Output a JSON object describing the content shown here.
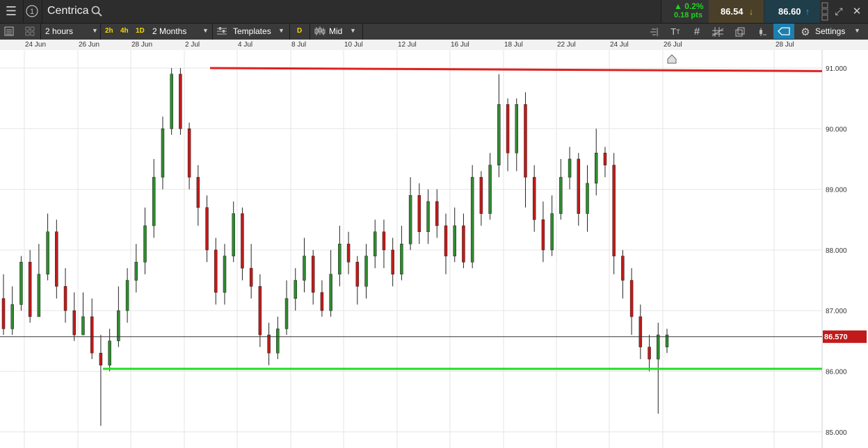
{
  "app": {
    "instrument": "Centrica",
    "change_pct": "▲ 0.2%",
    "change_pts": "0.18 pts",
    "sell_price": "86.54",
    "buy_price": "86.60"
  },
  "toolbar": {
    "interval": "2 hours",
    "quick_2h": "2h",
    "quick_4h": "4h",
    "quick_1d": "1D",
    "range": "2 Months",
    "templates": "Templates",
    "d_button": "D",
    "price_type": "Mid",
    "settings": "Settings"
  },
  "colors": {
    "up": "#2e8b2e",
    "down": "#c11a1a",
    "resistance": "#e02020",
    "support": "#22dd22",
    "current_price": "#c11a1a"
  },
  "chart_data": {
    "type": "candlestick",
    "date_ticks": [
      "24 Jun",
      "26 Jun",
      "28 Jun",
      "2 Jul",
      "4 Jul",
      "8 Jul",
      "10 Jul",
      "12 Jul",
      "16 Jul",
      "18 Jul",
      "22 Jul",
      "24 Jul",
      "26 Jul",
      "28 Jul"
    ],
    "y_ticks": [
      "91.000",
      "90.000",
      "89.000",
      "88.000",
      "87.000",
      "86.000",
      "85.000"
    ],
    "ylim": [
      84.85,
      91.35
    ],
    "current_price": 86.57,
    "current_price_label": "86.570",
    "resistance_line": {
      "start": 91.0,
      "end": 90.95
    },
    "support_line": 86.04,
    "candles": [
      [
        87.2,
        86.7,
        87.6,
        86.6
      ],
      [
        86.7,
        87.1,
        87.4,
        86.6
      ],
      [
        87.1,
        87.8,
        87.9,
        87.0
      ],
      [
        87.8,
        86.9,
        88.0,
        86.8
      ],
      [
        86.9,
        87.6,
        88.1,
        86.9
      ],
      [
        87.6,
        88.3,
        88.6,
        87.5
      ],
      [
        88.3,
        87.4,
        88.5,
        87.2
      ],
      [
        87.4,
        87.0,
        87.7,
        86.8
      ],
      [
        87.0,
        86.6,
        87.3,
        86.5
      ],
      [
        86.6,
        86.9,
        87.3,
        86.6
      ],
      [
        86.9,
        86.3,
        87.2,
        86.2
      ],
      [
        86.3,
        86.1,
        86.6,
        85.1
      ],
      [
        86.1,
        86.5,
        86.7,
        86.0
      ],
      [
        86.5,
        87.0,
        87.4,
        86.4
      ],
      [
        87.0,
        87.5,
        87.7,
        86.8
      ],
      [
        87.5,
        87.8,
        88.1,
        87.3
      ],
      [
        87.8,
        88.4,
        88.7,
        87.6
      ],
      [
        88.4,
        89.2,
        89.5,
        88.2
      ],
      [
        89.2,
        90.0,
        90.2,
        89.0
      ],
      [
        90.0,
        90.9,
        91.0,
        89.9
      ],
      [
        90.9,
        90.0,
        91.0,
        89.9
      ],
      [
        90.0,
        89.2,
        90.1,
        89.0
      ],
      [
        89.2,
        88.7,
        89.4,
        88.4
      ],
      [
        88.7,
        88.0,
        88.9,
        87.8
      ],
      [
        88.0,
        87.3,
        88.2,
        87.1
      ],
      [
        87.3,
        87.9,
        88.1,
        87.1
      ],
      [
        87.9,
        88.6,
        88.8,
        87.8
      ],
      [
        88.6,
        87.7,
        88.7,
        87.5
      ],
      [
        87.7,
        87.4,
        88.1,
        87.2
      ],
      [
        87.4,
        86.6,
        87.6,
        86.4
      ],
      [
        86.6,
        86.3,
        86.8,
        86.1
      ],
      [
        86.3,
        86.7,
        86.9,
        86.2
      ],
      [
        86.7,
        87.2,
        87.5,
        86.6
      ],
      [
        87.2,
        87.5,
        87.7,
        87.0
      ],
      [
        87.5,
        87.9,
        88.2,
        87.3
      ],
      [
        87.9,
        87.3,
        88.0,
        87.1
      ],
      [
        87.3,
        87.0,
        87.5,
        86.9
      ],
      [
        87.0,
        87.6,
        88.0,
        86.9
      ],
      [
        87.6,
        88.1,
        88.4,
        87.4
      ],
      [
        88.1,
        87.8,
        88.3,
        87.6
      ],
      [
        87.8,
        87.4,
        87.9,
        87.1
      ],
      [
        87.4,
        87.9,
        88.1,
        87.2
      ],
      [
        87.9,
        88.3,
        88.5,
        87.7
      ],
      [
        88.3,
        88.0,
        88.5,
        87.7
      ],
      [
        88.0,
        87.6,
        88.2,
        87.4
      ],
      [
        87.6,
        88.1,
        88.4,
        87.5
      ],
      [
        88.1,
        88.9,
        89.2,
        88.0
      ],
      [
        88.9,
        88.3,
        89.1,
        88.1
      ],
      [
        88.3,
        88.8,
        89.0,
        88.1
      ],
      [
        88.8,
        88.4,
        89.0,
        88.2
      ],
      [
        88.4,
        87.9,
        88.6,
        87.6
      ],
      [
        87.9,
        88.4,
        88.7,
        87.8
      ],
      [
        88.4,
        87.8,
        88.6,
        87.7
      ],
      [
        87.8,
        89.2,
        89.4,
        87.7
      ],
      [
        89.2,
        88.6,
        89.3,
        88.4
      ],
      [
        88.6,
        89.4,
        89.6,
        88.5
      ],
      [
        89.4,
        90.4,
        90.9,
        89.2
      ],
      [
        90.4,
        89.6,
        90.5,
        89.3
      ],
      [
        89.6,
        90.4,
        90.5,
        89.3
      ],
      [
        90.4,
        89.2,
        90.6,
        88.7
      ],
      [
        89.2,
        88.5,
        89.4,
        88.3
      ],
      [
        88.5,
        88.0,
        88.8,
        87.8
      ],
      [
        88.0,
        88.6,
        88.9,
        87.9
      ],
      [
        88.6,
        89.2,
        89.5,
        88.5
      ],
      [
        89.2,
        89.5,
        89.7,
        89.0
      ],
      [
        89.5,
        88.6,
        89.6,
        88.4
      ],
      [
        88.6,
        89.1,
        89.4,
        88.3
      ],
      [
        89.1,
        89.6,
        90.0,
        88.9
      ],
      [
        89.6,
        89.4,
        89.7,
        89.2
      ],
      [
        89.4,
        87.9,
        89.6,
        87.6
      ],
      [
        87.9,
        87.5,
        88.0,
        87.2
      ],
      [
        87.5,
        86.9,
        87.7,
        86.6
      ],
      [
        86.9,
        86.4,
        87.1,
        86.2
      ],
      [
        86.4,
        86.2,
        86.6,
        86.0
      ],
      [
        86.2,
        86.6,
        86.8,
        85.3
      ],
      [
        86.4,
        86.6,
        86.7,
        86.3
      ]
    ]
  }
}
